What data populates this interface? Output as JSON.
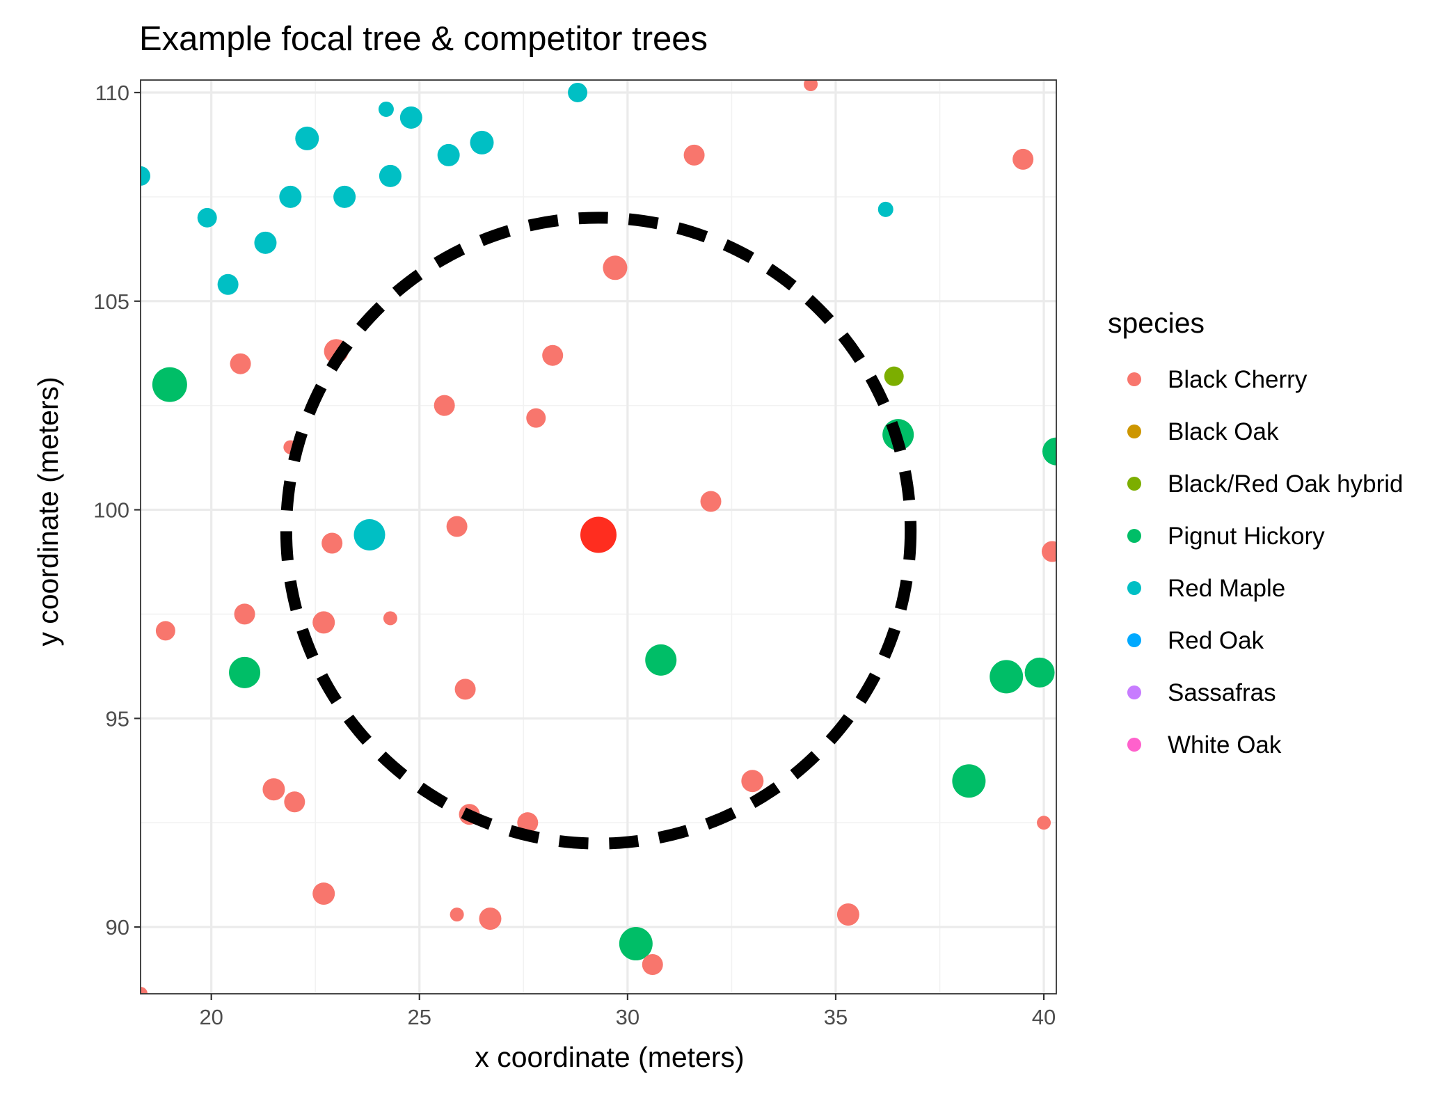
{
  "chart_data": {
    "type": "scatter",
    "title": "Example focal tree & competitor trees",
    "xlabel": "x coordinate (meters)",
    "ylabel": "y coordinate (meters)",
    "xlim": [
      18.3,
      40.3
    ],
    "ylim": [
      88.4,
      110.3
    ],
    "x_ticks": [
      20,
      25,
      30,
      35,
      40
    ],
    "y_ticks": [
      90,
      95,
      100,
      105,
      110
    ],
    "grid": true,
    "legend": {
      "title": "species",
      "position": "right",
      "entries": [
        {
          "label": "Black Cherry",
          "color": "#F8766D"
        },
        {
          "label": "Black Oak",
          "color": "#CD9600"
        },
        {
          "label": "Black/Red Oak hybrid",
          "color": "#7CAE00"
        },
        {
          "label": "Pignut Hickory",
          "color": "#00BE67"
        },
        {
          "label": "Red Maple",
          "color": "#00BFC4"
        },
        {
          "label": "Red Oak",
          "color": "#00A9FF"
        },
        {
          "label": "Sassafras",
          "color": "#C77CFF"
        },
        {
          "label": "White Oak",
          "color": "#FF61CC"
        }
      ]
    },
    "focal_tree": {
      "x": 29.3,
      "y": 99.4,
      "species": "Black Cherry",
      "color": "#FF2D1F"
    },
    "neighborhood_circle": {
      "center_x": 29.3,
      "center_y": 99.5,
      "radius": 7.5
    },
    "points": [
      {
        "x": 34.4,
        "y": 110.2,
        "species": "Black Cherry",
        "size": 1
      },
      {
        "x": 31.6,
        "y": 108.5,
        "species": "Black Cherry",
        "size": 2
      },
      {
        "x": 39.5,
        "y": 108.4,
        "species": "Black Cherry",
        "size": 2
      },
      {
        "x": 29.7,
        "y": 105.8,
        "species": "Black Cherry",
        "size": 2.5
      },
      {
        "x": 23.0,
        "y": 103.8,
        "species": "Black Cherry",
        "size": 2.5
      },
      {
        "x": 20.7,
        "y": 103.5,
        "species": "Black Cherry",
        "size": 2
      },
      {
        "x": 28.2,
        "y": 103.7,
        "species": "Black Cherry",
        "size": 2
      },
      {
        "x": 25.6,
        "y": 102.5,
        "species": "Black Cherry",
        "size": 2
      },
      {
        "x": 27.8,
        "y": 102.2,
        "species": "Black Cherry",
        "size": 1.8
      },
      {
        "x": 21.9,
        "y": 101.5,
        "species": "Black Cherry",
        "size": 1
      },
      {
        "x": 32.0,
        "y": 100.2,
        "species": "Black Cherry",
        "size": 2
      },
      {
        "x": 25.9,
        "y": 99.6,
        "species": "Black Cherry",
        "size": 2
      },
      {
        "x": 22.9,
        "y": 99.2,
        "species": "Black Cherry",
        "size": 2
      },
      {
        "x": 40.2,
        "y": 99.0,
        "species": "Black Cherry",
        "size": 2
      },
      {
        "x": 20.8,
        "y": 97.5,
        "species": "Black Cherry",
        "size": 2
      },
      {
        "x": 22.7,
        "y": 97.3,
        "species": "Black Cherry",
        "size": 2.2
      },
      {
        "x": 24.3,
        "y": 97.4,
        "species": "Black Cherry",
        "size": 1
      },
      {
        "x": 18.9,
        "y": 97.1,
        "species": "Black Cherry",
        "size": 1.8
      },
      {
        "x": 26.1,
        "y": 95.7,
        "species": "Black Cherry",
        "size": 2
      },
      {
        "x": 33.0,
        "y": 93.5,
        "species": "Black Cherry",
        "size": 2.2
      },
      {
        "x": 21.5,
        "y": 93.3,
        "species": "Black Cherry",
        "size": 2.2
      },
      {
        "x": 22.0,
        "y": 93.0,
        "species": "Black Cherry",
        "size": 2
      },
      {
        "x": 26.2,
        "y": 92.7,
        "species": "Black Cherry",
        "size": 2
      },
      {
        "x": 27.6,
        "y": 92.5,
        "species": "Black Cherry",
        "size": 2
      },
      {
        "x": 40.0,
        "y": 92.5,
        "species": "Black Cherry",
        "size": 1
      },
      {
        "x": 22.7,
        "y": 90.8,
        "species": "Black Cherry",
        "size": 2.2
      },
      {
        "x": 25.9,
        "y": 90.3,
        "species": "Black Cherry",
        "size": 1
      },
      {
        "x": 26.7,
        "y": 90.2,
        "species": "Black Cherry",
        "size": 2.2
      },
      {
        "x": 35.3,
        "y": 90.3,
        "species": "Black Cherry",
        "size": 2.2
      },
      {
        "x": 30.6,
        "y": 89.1,
        "species": "Black Cherry",
        "size": 2
      },
      {
        "x": 18.3,
        "y": 88.4,
        "species": "Black Cherry",
        "size": 1
      },
      {
        "x": 36.4,
        "y": 103.2,
        "species": "Black/Red Oak hybrid",
        "size": 1.8
      },
      {
        "x": 19.0,
        "y": 103.0,
        "species": "Pignut Hickory",
        "size": 4
      },
      {
        "x": 36.5,
        "y": 101.8,
        "species": "Pignut Hickory",
        "size": 3.5
      },
      {
        "x": 40.3,
        "y": 101.4,
        "species": "Pignut Hickory",
        "size": 3
      },
      {
        "x": 20.8,
        "y": 96.1,
        "species": "Pignut Hickory",
        "size": 3.5
      },
      {
        "x": 30.8,
        "y": 96.4,
        "species": "Pignut Hickory",
        "size": 3.5
      },
      {
        "x": 39.1,
        "y": 96.0,
        "species": "Pignut Hickory",
        "size": 3.8
      },
      {
        "x": 39.9,
        "y": 96.1,
        "species": "Pignut Hickory",
        "size": 3.3
      },
      {
        "x": 38.2,
        "y": 93.5,
        "species": "Pignut Hickory",
        "size": 3.8
      },
      {
        "x": 30.2,
        "y": 89.6,
        "species": "Pignut Hickory",
        "size": 3.8
      },
      {
        "x": 28.8,
        "y": 110.0,
        "species": "Red Maple",
        "size": 1.8
      },
      {
        "x": 24.2,
        "y": 109.6,
        "species": "Red Maple",
        "size": 1.2
      },
      {
        "x": 24.8,
        "y": 109.4,
        "species": "Red Maple",
        "size": 2.2
      },
      {
        "x": 22.3,
        "y": 108.9,
        "species": "Red Maple",
        "size": 2.4
      },
      {
        "x": 26.5,
        "y": 108.8,
        "species": "Red Maple",
        "size": 2.4
      },
      {
        "x": 25.7,
        "y": 108.5,
        "species": "Red Maple",
        "size": 2.2
      },
      {
        "x": 18.3,
        "y": 108.0,
        "species": "Red Maple",
        "size": 1.8
      },
      {
        "x": 24.3,
        "y": 108.0,
        "species": "Red Maple",
        "size": 2.2
      },
      {
        "x": 21.9,
        "y": 107.5,
        "species": "Red Maple",
        "size": 2.2
      },
      {
        "x": 23.2,
        "y": 107.5,
        "species": "Red Maple",
        "size": 2.2
      },
      {
        "x": 36.2,
        "y": 107.2,
        "species": "Red Maple",
        "size": 1.2
      },
      {
        "x": 19.9,
        "y": 107.0,
        "species": "Red Maple",
        "size": 1.8
      },
      {
        "x": 21.3,
        "y": 106.4,
        "species": "Red Maple",
        "size": 2.2
      },
      {
        "x": 20.4,
        "y": 105.4,
        "species": "Red Maple",
        "size": 2
      },
      {
        "x": 23.8,
        "y": 99.4,
        "species": "Red Maple",
        "size": 3.5
      }
    ]
  }
}
